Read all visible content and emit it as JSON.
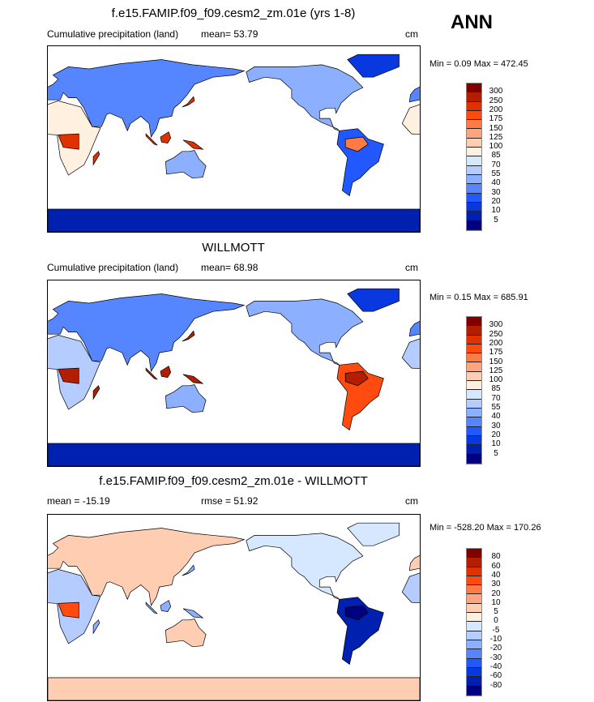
{
  "season": "ANN",
  "colors": [
    "#800000",
    "#b41e00",
    "#e03200",
    "#ff4a10",
    "#ff7a45",
    "#ffa47e",
    "#ffcdb2",
    "#fff0e0",
    "#d6e8ff",
    "#b4ccff",
    "#8cb0ff",
    "#5585ff",
    "#2258ff",
    "#0a38e0",
    "#0020b0",
    "#000080"
  ],
  "chart_data": [
    {
      "type": "heatmap",
      "title": "f.e15.FAMIP.f09_f09.cesm2_zm.01e (yrs 1-8)",
      "left_label": "Cumulative precipitation (land)",
      "stat_label": "mean=  53.79",
      "mean": 53.79,
      "units": "cm",
      "minmax_label": "Min =  0.09 Max = 472.45",
      "min": 0.09,
      "max": 472.45,
      "levels": [
        "300",
        "250",
        "200",
        "175",
        "150",
        "125",
        "100",
        "85",
        "70",
        "55",
        "40",
        "30",
        "20",
        "10",
        "5"
      ]
    },
    {
      "type": "heatmap",
      "title": "WILLMOTT",
      "left_label": "Cumulative precipitation (land)",
      "stat_label": "mean=  68.98",
      "mean": 68.98,
      "units": "cm",
      "minmax_label": "Min =  0.15 Max = 685.91",
      "min": 0.15,
      "max": 685.91,
      "levels": [
        "300",
        "250",
        "200",
        "175",
        "150",
        "125",
        "100",
        "85",
        "70",
        "55",
        "40",
        "30",
        "20",
        "10",
        "5"
      ]
    },
    {
      "type": "heatmap",
      "title": "f.e15.FAMIP.f09_f09.cesm2_zm.01e - WILLMOTT",
      "left_label": "mean = -15.19",
      "stat_label": "rmse =  51.92",
      "mean": -15.19,
      "rmse": 51.92,
      "units": "cm",
      "minmax_label": "Min = -528.20 Max = 170.26",
      "min": -528.2,
      "max": 170.26,
      "levels": [
        "80",
        "60",
        "40",
        "30",
        "20",
        "10",
        "5",
        "0",
        "-5",
        "-10",
        "-20",
        "-30",
        "-40",
        "-60",
        "-80"
      ]
    }
  ]
}
